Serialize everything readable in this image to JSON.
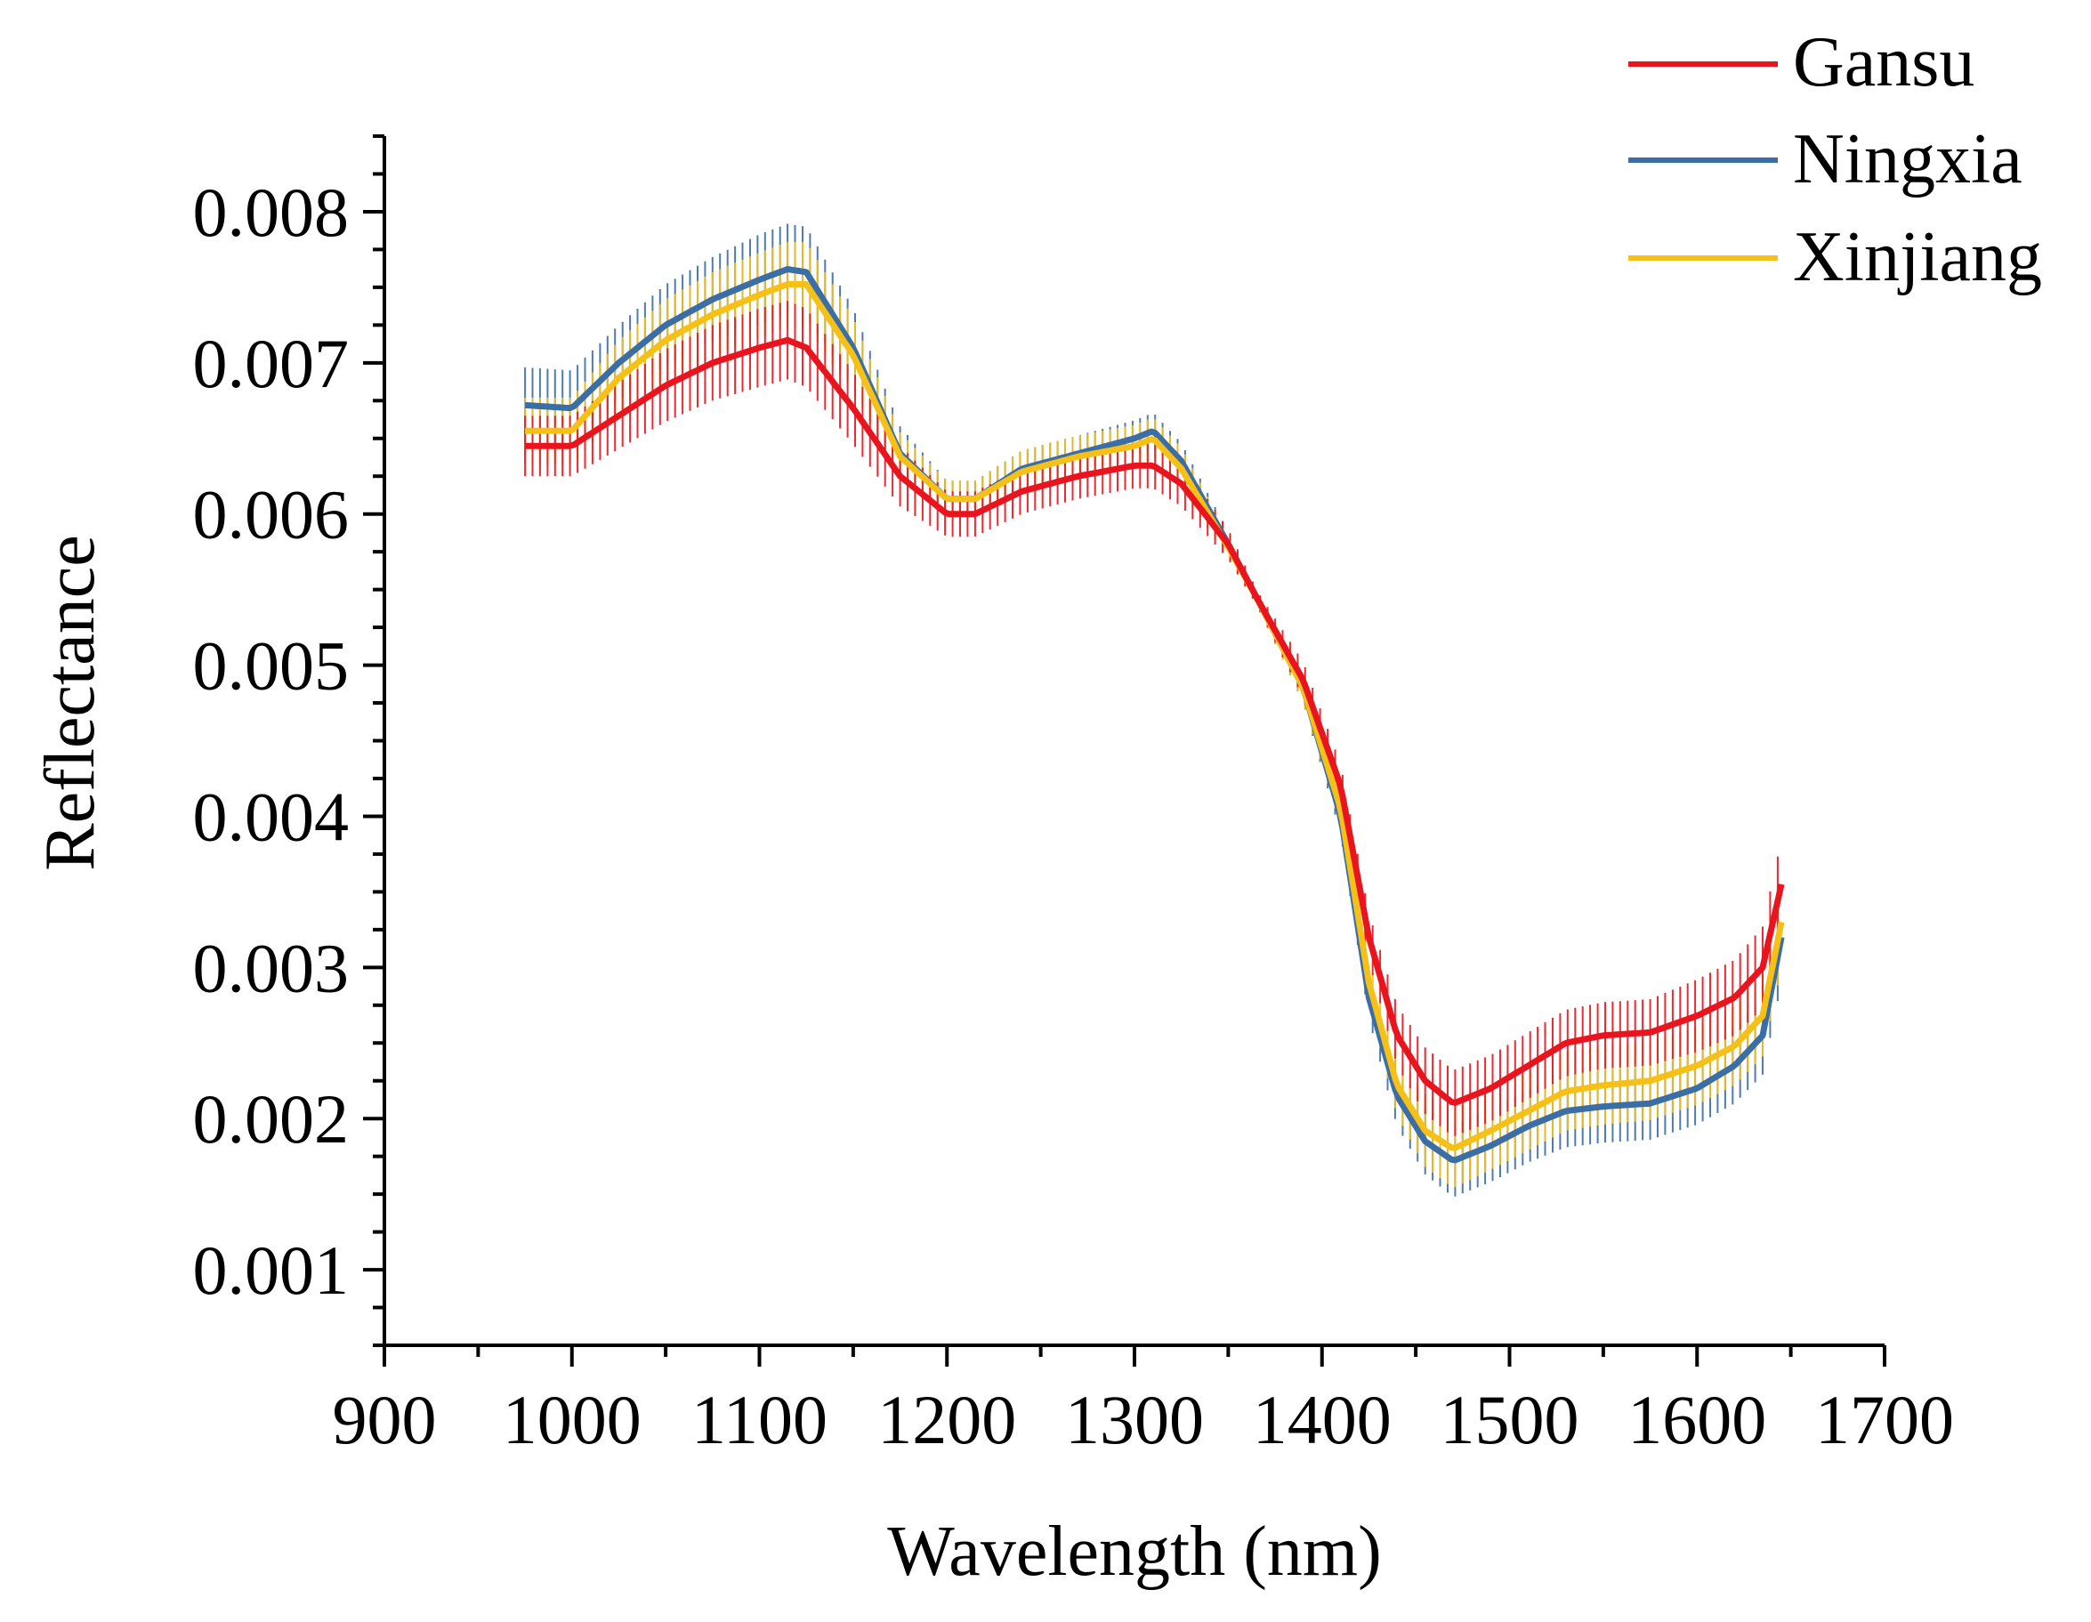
{
  "chart_data": {
    "type": "line",
    "title": "",
    "xlabel": "Wavelength (nm)",
    "ylabel": "Reflectance",
    "xlim": [
      900,
      1700
    ],
    "ylim": [
      0.0005,
      0.0085
    ],
    "xticks": [
      "900",
      "1000",
      "1100",
      "1200",
      "1300",
      "1400",
      "1500",
      "1600",
      "1700"
    ],
    "yticks": [
      "0.001",
      "0.002",
      "0.003",
      "0.004",
      "0.005",
      "0.006",
      "0.007",
      "0.008"
    ],
    "grid": false,
    "legend_position": "top-right",
    "x": [
      975,
      1000,
      1025,
      1050,
      1075,
      1100,
      1115,
      1125,
      1150,
      1175,
      1200,
      1215,
      1240,
      1270,
      1300,
      1310,
      1325,
      1350,
      1365,
      1390,
      1410,
      1425,
      1440,
      1455,
      1470,
      1490,
      1510,
      1530,
      1550,
      1575,
      1600,
      1620,
      1635,
      1645
    ],
    "series": [
      {
        "name": "Gansu",
        "color": "#e8141e",
        "values": [
          0.00645,
          0.00645,
          0.00665,
          0.00685,
          0.007,
          0.0071,
          0.00715,
          0.0071,
          0.0067,
          0.00625,
          0.006,
          0.006,
          0.00615,
          0.00625,
          0.00632,
          0.00632,
          0.0062,
          0.0058,
          0.00545,
          0.0049,
          0.0042,
          0.0032,
          0.00255,
          0.00225,
          0.0021,
          0.0022,
          0.00235,
          0.0025,
          0.00255,
          0.00257,
          0.00268,
          0.0028,
          0.003,
          0.00355
        ],
        "error": [
          0.0002,
          0.0002,
          0.00022,
          0.00024,
          0.00025,
          0.00026,
          0.00026,
          0.00026,
          0.00024,
          0.0002,
          0.00015,
          0.00015,
          0.00015,
          0.00015,
          0.00015,
          0.00015,
          0.00015,
          0.0001,
          5e-05,
          0.00012,
          0.00014,
          0.00016,
          0.0002,
          0.00022,
          0.00022,
          0.00022,
          0.00022,
          0.00022,
          0.00022,
          0.00022,
          0.00024,
          0.00025,
          0.00027,
          0.0003
        ]
      },
      {
        "name": "Ningxia",
        "color": "#3b6ea5",
        "values": [
          0.00672,
          0.0067,
          0.007,
          0.00725,
          0.00742,
          0.00755,
          0.00762,
          0.0076,
          0.0071,
          0.0064,
          0.0061,
          0.0061,
          0.0063,
          0.0064,
          0.0065,
          0.00655,
          0.00635,
          0.0058,
          0.00545,
          0.00485,
          0.004,
          0.0028,
          0.00215,
          0.00185,
          0.00172,
          0.00182,
          0.00195,
          0.00205,
          0.00208,
          0.0021,
          0.0022,
          0.00235,
          0.00255,
          0.0032
        ],
        "error": [
          0.00025,
          0.00025,
          0.00025,
          0.00027,
          0.00028,
          0.0003,
          0.0003,
          0.0003,
          0.00026,
          0.00018,
          0.00012,
          0.00012,
          0.00012,
          0.00012,
          0.00012,
          0.00012,
          0.00012,
          8e-05,
          5e-05,
          0.0001,
          0.00012,
          0.00014,
          0.0002,
          0.00022,
          0.00024,
          0.00024,
          0.00024,
          0.00024,
          0.00024,
          0.00024,
          0.00024,
          0.00025,
          0.00026,
          0.0003
        ]
      },
      {
        "name": "Xinjiang",
        "color": "#f5c018",
        "values": [
          0.00655,
          0.00655,
          0.0069,
          0.00715,
          0.00732,
          0.00745,
          0.00752,
          0.00752,
          0.00705,
          0.00638,
          0.0061,
          0.0061,
          0.00628,
          0.00638,
          0.00645,
          0.0065,
          0.0063,
          0.00578,
          0.00545,
          0.00485,
          0.00405,
          0.0029,
          0.00222,
          0.00192,
          0.0018,
          0.00192,
          0.00205,
          0.00218,
          0.00222,
          0.00225,
          0.00235,
          0.00248,
          0.00268,
          0.0033
        ],
        "error": [
          0.00022,
          0.00022,
          0.00025,
          0.00027,
          0.00028,
          0.00028,
          0.00028,
          0.00028,
          0.00025,
          0.00016,
          0.00012,
          0.00012,
          0.00014,
          0.00014,
          0.00014,
          0.00014,
          0.00014,
          8e-05,
          5e-05,
          0.0001,
          0.00012,
          0.00014,
          0.0002,
          0.00024,
          0.00026,
          0.00026,
          0.00026,
          0.00026,
          0.00026,
          0.00026,
          0.00026,
          0.00026,
          0.00027,
          0.0003
        ]
      }
    ]
  }
}
